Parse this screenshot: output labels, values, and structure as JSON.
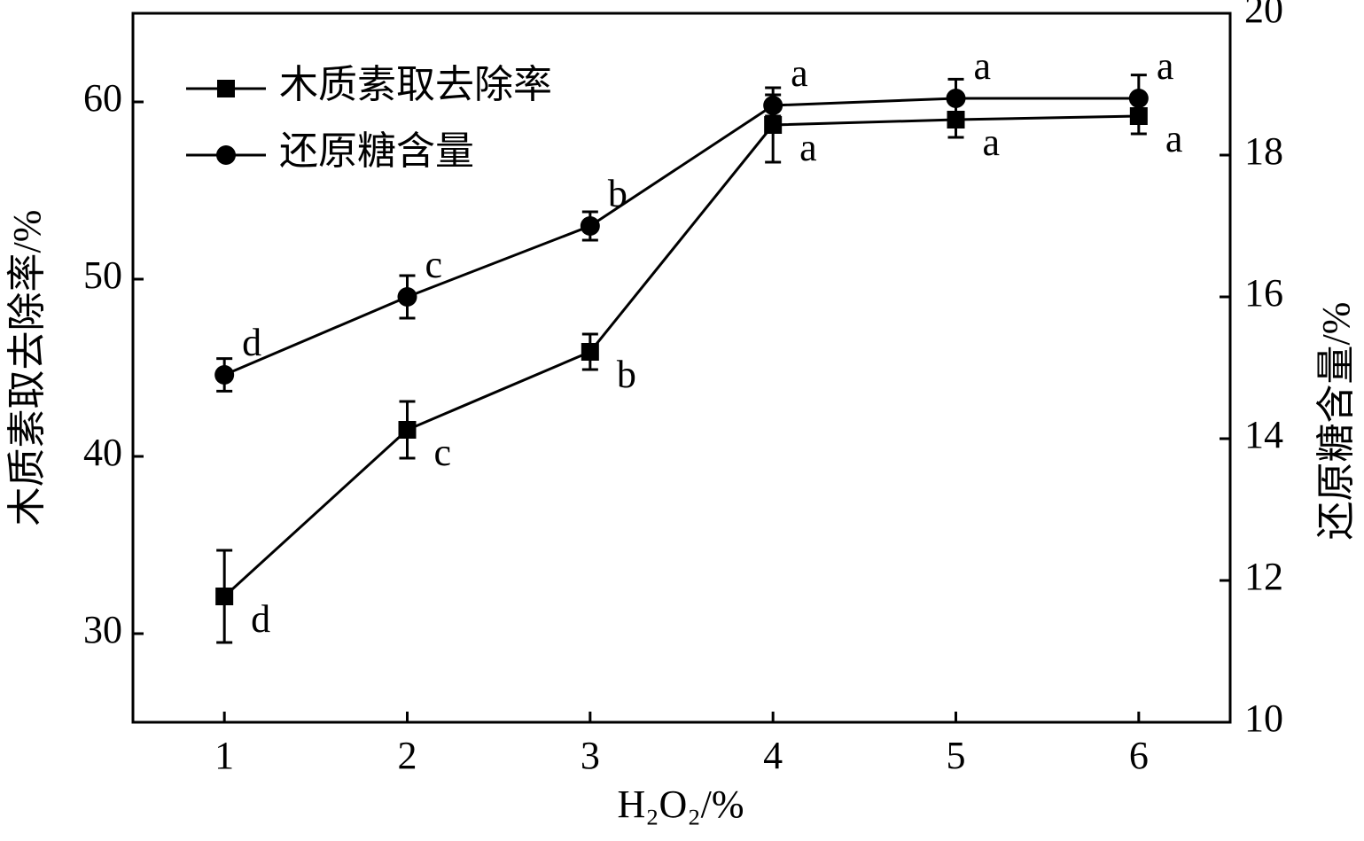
{
  "chart_data": {
    "type": "line",
    "x_label": "H₂O₂/%",
    "y_label": "木质素取去除率/%",
    "y2_label": "还原糖含量/%",
    "x": [
      1,
      2,
      3,
      4,
      5,
      6
    ],
    "xlim": [
      0.5,
      6.5
    ],
    "xticks": [
      1,
      2,
      3,
      4,
      5,
      6
    ],
    "ylim": [
      25,
      65
    ],
    "yticks": [
      30,
      40,
      50,
      60
    ],
    "y2lim": [
      10,
      20
    ],
    "y2ticks": [
      10,
      12,
      14,
      16,
      18,
      20
    ],
    "legend": "upper left",
    "series": [
      {
        "name": "木质素取去除率",
        "color": "#000000",
        "marker": "square",
        "values": [
          32.1,
          41.5,
          45.9,
          58.7,
          59.0,
          59.2
        ],
        "errors": [
          2.6,
          1.6,
          1.0,
          2.1,
          1.0,
          1.0
        ],
        "letters": [
          "d",
          "c",
          "b",
          "a",
          "a",
          "a"
        ]
      },
      {
        "name": "还原糖含量",
        "color": "#000000",
        "marker": "circle",
        "axis": "y2",
        "values": [
          14.9,
          16.0,
          17.0,
          18.7,
          18.8,
          18.8
        ],
        "errors": [
          0.23,
          0.3,
          0.2,
          0.15,
          0.27,
          0.33
        ],
        "letters": [
          "d",
          "c",
          "b",
          "a",
          "a",
          "a"
        ]
      }
    ]
  }
}
